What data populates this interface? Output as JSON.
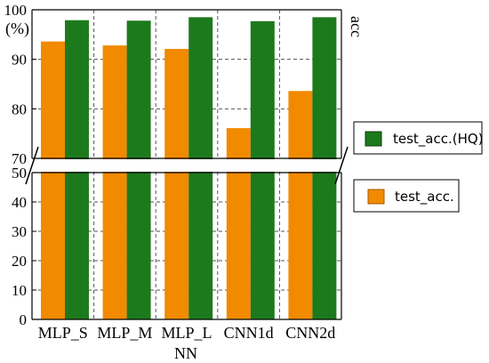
{
  "chart_data": {
    "type": "bar",
    "categories": [
      "MLP_S",
      "MLP_M",
      "MLP_L",
      "CNN1d",
      "CNN2d"
    ],
    "series": [
      {
        "name": "test_acc.",
        "values": [
          93.6,
          92.8,
          92.1,
          76.1,
          83.6
        ],
        "color": "#f28a00"
      },
      {
        "name": "test_acc.(HQ)",
        "values": [
          97.9,
          97.8,
          98.5,
          97.7,
          98.5
        ],
        "color": "#1c7a1c"
      }
    ],
    "xlabel": "NN",
    "ylabel_unit": "(%)",
    "right_label": "acc",
    "broken_axis": {
      "lower": [
        0,
        50
      ],
      "upper": [
        70,
        100
      ]
    },
    "y_ticks_lower": [
      "0",
      "10",
      "20",
      "30",
      "40",
      "50"
    ],
    "y_ticks_upper": [
      "70",
      "80",
      "90",
      "100"
    ],
    "grid": true
  }
}
